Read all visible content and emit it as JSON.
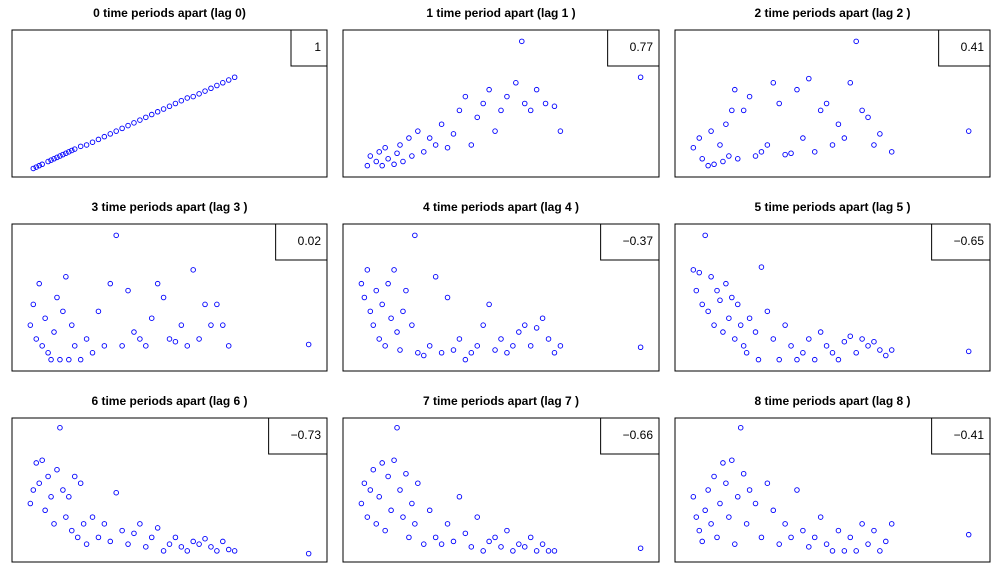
{
  "chart_data": [
    {
      "type": "scatter",
      "title": "0 time periods apart (lag 0)",
      "annotation": "1",
      "color": "#0000ff",
      "xlim": [
        0,
        100
      ],
      "ylim": [
        0,
        100
      ],
      "x": [
        4,
        5,
        6,
        7,
        9,
        10,
        11,
        12,
        13,
        14,
        15,
        16,
        17,
        18,
        20,
        22,
        24,
        26,
        28,
        30,
        32,
        34,
        36,
        38,
        40,
        42,
        44,
        46,
        48,
        50,
        52,
        54,
        56,
        58,
        60,
        62,
        64,
        66,
        68,
        70,
        72,
        97
      ],
      "y": [
        3,
        4,
        5,
        6,
        8,
        9,
        10,
        11,
        12,
        13,
        14,
        15,
        16,
        17,
        19,
        20,
        22,
        24,
        26,
        28,
        30,
        32,
        34,
        36,
        38,
        40,
        42,
        44,
        46,
        48,
        50,
        52,
        54,
        55,
        57,
        59,
        61,
        63,
        65,
        67,
        69,
        95
      ]
    },
    {
      "type": "scatter",
      "title": "1 time period apart (lag 1 )",
      "annotation": "0.77",
      "color": "#0000ff",
      "xlim": [
        0,
        100
      ],
      "ylim": [
        0,
        100
      ],
      "x": [
        5,
        6,
        8,
        9,
        10,
        11,
        12,
        14,
        15,
        16,
        17,
        19,
        20,
        22,
        24,
        26,
        28,
        30,
        32,
        34,
        36,
        38,
        40,
        42,
        44,
        46,
        48,
        50,
        52,
        55,
        57,
        58,
        60,
        62,
        65,
        68,
        70,
        97
      ],
      "y": [
        5,
        12,
        8,
        15,
        5,
        18,
        10,
        6,
        14,
        20,
        8,
        25,
        12,
        30,
        15,
        25,
        20,
        35,
        18,
        28,
        45,
        55,
        20,
        40,
        50,
        60,
        30,
        45,
        55,
        65,
        95,
        50,
        45,
        60,
        50,
        48,
        30,
        69
      ]
    },
    {
      "type": "scatter",
      "title": "2 time periods apart (lag 2 )",
      "annotation": "0.41",
      "color": "#0000ff",
      "xlim": [
        0,
        100
      ],
      "ylim": [
        0,
        100
      ],
      "x": [
        3,
        5,
        6,
        8,
        9,
        10,
        12,
        13,
        14,
        15,
        16,
        17,
        18,
        20,
        22,
        24,
        26,
        28,
        30,
        32,
        34,
        36,
        38,
        40,
        42,
        44,
        46,
        48,
        50,
        52,
        54,
        56,
        58,
        60,
        62,
        64,
        66,
        70,
        96
      ],
      "y": [
        18,
        25,
        10,
        5,
        30,
        6,
        20,
        8,
        35,
        12,
        45,
        60,
        10,
        45,
        55,
        12,
        15,
        20,
        65,
        50,
        13,
        14,
        60,
        25,
        68,
        15,
        45,
        50,
        20,
        35,
        25,
        65,
        95,
        45,
        40,
        20,
        28,
        15,
        30
      ]
    },
    {
      "type": "scatter",
      "title": "3 time periods apart (lag 3 )",
      "annotation": "0.02",
      "color": "#0000ff",
      "xlim": [
        0,
        100
      ],
      "ylim": [
        0,
        100
      ],
      "x": [
        3,
        4,
        5,
        6,
        7,
        8,
        9,
        10,
        11,
        12,
        13,
        14,
        15,
        16,
        17,
        18,
        20,
        22,
        24,
        26,
        28,
        30,
        32,
        34,
        36,
        38,
        40,
        42,
        44,
        46,
        48,
        50,
        52,
        54,
        56,
        58,
        60,
        62,
        64,
        66,
        68,
        70,
        97
      ],
      "y": [
        30,
        45,
        20,
        60,
        15,
        35,
        10,
        5,
        25,
        50,
        5,
        40,
        65,
        5,
        30,
        15,
        5,
        20,
        10,
        40,
        15,
        60,
        95,
        15,
        55,
        25,
        20,
        15,
        35,
        60,
        50,
        20,
        18,
        30,
        15,
        70,
        20,
        45,
        30,
        45,
        30,
        15,
        16
      ]
    },
    {
      "type": "scatter",
      "title": "4 time periods apart (lag 4 )",
      "annotation": "−0.37",
      "color": "#0000ff",
      "xlim": [
        0,
        100
      ],
      "ylim": [
        0,
        100
      ],
      "x": [
        3,
        4,
        5,
        6,
        7,
        8,
        9,
        10,
        11,
        12,
        13,
        14,
        15,
        16,
        17,
        18,
        20,
        21,
        22,
        24,
        26,
        28,
        30,
        32,
        34,
        36,
        38,
        40,
        42,
        44,
        46,
        48,
        50,
        52,
        54,
        56,
        58,
        60,
        62,
        64,
        66,
        68,
        70,
        97
      ],
      "y": [
        60,
        50,
        70,
        40,
        30,
        55,
        20,
        45,
        15,
        60,
        35,
        70,
        25,
        12,
        40,
        55,
        30,
        95,
        10,
        8,
        15,
        65,
        10,
        50,
        12,
        20,
        5,
        10,
        15,
        30,
        45,
        12,
        20,
        10,
        15,
        25,
        30,
        15,
        28,
        35,
        20,
        10,
        15,
        14
      ]
    },
    {
      "type": "scatter",
      "title": "5 time periods apart (lag 5 )",
      "annotation": "−0.65",
      "color": "#0000ff",
      "xlim": [
        0,
        100
      ],
      "ylim": [
        0,
        100
      ],
      "x": [
        3,
        4,
        5,
        6,
        7,
        8,
        9,
        10,
        11,
        12,
        13,
        14,
        15,
        16,
        17,
        18,
        19,
        20,
        21,
        22,
        24,
        25,
        26,
        28,
        30,
        32,
        34,
        36,
        38,
        40,
        42,
        44,
        46,
        48,
        50,
        52,
        54,
        56,
        58,
        60,
        62,
        64,
        66,
        68,
        70,
        96
      ],
      "y": [
        70,
        55,
        68,
        45,
        95,
        40,
        65,
        30,
        55,
        48,
        25,
        60,
        35,
        50,
        20,
        45,
        30,
        15,
        10,
        35,
        25,
        5,
        72,
        40,
        20,
        5,
        30,
        15,
        5,
        10,
        20,
        5,
        25,
        15,
        10,
        5,
        18,
        22,
        10,
        20,
        15,
        18,
        12,
        8,
        12,
        11
      ]
    },
    {
      "type": "scatter",
      "title": "6 time periods apart (lag 6 )",
      "annotation": "−0.73",
      "color": "#0000ff",
      "xlim": [
        0,
        100
      ],
      "ylim": [
        0,
        100
      ],
      "x": [
        3,
        4,
        5,
        6,
        7,
        8,
        9,
        10,
        11,
        12,
        13,
        14,
        15,
        16,
        17,
        18,
        19,
        20,
        21,
        22,
        24,
        26,
        28,
        30,
        32,
        34,
        36,
        38,
        40,
        42,
        44,
        46,
        48,
        50,
        52,
        54,
        56,
        58,
        60,
        62,
        64,
        66,
        68,
        70,
        72,
        97
      ],
      "y": [
        40,
        50,
        70,
        55,
        72,
        35,
        60,
        45,
        25,
        65,
        96,
        50,
        30,
        45,
        20,
        60,
        15,
        55,
        25,
        10,
        30,
        15,
        25,
        12,
        48,
        20,
        10,
        18,
        25,
        8,
        15,
        22,
        5,
        10,
        15,
        8,
        5,
        12,
        10,
        14,
        8,
        5,
        12,
        6,
        5,
        3
      ]
    },
    {
      "type": "scatter",
      "title": "7 time periods apart (lag 7 )",
      "annotation": "−0.66",
      "color": "#0000ff",
      "xlim": [
        0,
        100
      ],
      "ylim": [
        0,
        100
      ],
      "x": [
        3,
        4,
        5,
        6,
        7,
        8,
        9,
        10,
        11,
        12,
        13,
        14,
        15,
        16,
        17,
        18,
        19,
        20,
        21,
        22,
        24,
        26,
        28,
        30,
        32,
        34,
        36,
        38,
        40,
        42,
        44,
        46,
        48,
        50,
        52,
        54,
        56,
        58,
        60,
        62,
        64,
        66,
        68,
        97
      ],
      "y": [
        40,
        55,
        30,
        50,
        65,
        25,
        45,
        70,
        20,
        60,
        35,
        72,
        96,
        50,
        30,
        62,
        15,
        40,
        25,
        55,
        10,
        35,
        15,
        10,
        25,
        12,
        45,
        18,
        8,
        30,
        5,
        12,
        15,
        8,
        20,
        5,
        10,
        8,
        15,
        5,
        10,
        5,
        5,
        7
      ]
    },
    {
      "type": "scatter",
      "title": "8 time periods apart (lag 8 )",
      "annotation": "−0.41",
      "color": "#0000ff",
      "xlim": [
        0,
        100
      ],
      "ylim": [
        0,
        100
      ],
      "x": [
        3,
        4,
        5,
        6,
        7,
        8,
        9,
        10,
        11,
        12,
        13,
        14,
        15,
        16,
        17,
        18,
        19,
        20,
        21,
        22,
        24,
        26,
        28,
        30,
        32,
        34,
        36,
        38,
        40,
        42,
        44,
        46,
        48,
        50,
        52,
        54,
        56,
        58,
        60,
        62,
        64,
        66,
        68,
        70,
        96
      ],
      "y": [
        45,
        30,
        20,
        12,
        35,
        50,
        25,
        60,
        15,
        40,
        70,
        55,
        30,
        72,
        10,
        45,
        96,
        62,
        25,
        50,
        40,
        15,
        55,
        35,
        10,
        25,
        15,
        50,
        20,
        8,
        15,
        30,
        10,
        5,
        20,
        5,
        15,
        5,
        25,
        10,
        20,
        5,
        12,
        25,
        17
      ]
    }
  ]
}
